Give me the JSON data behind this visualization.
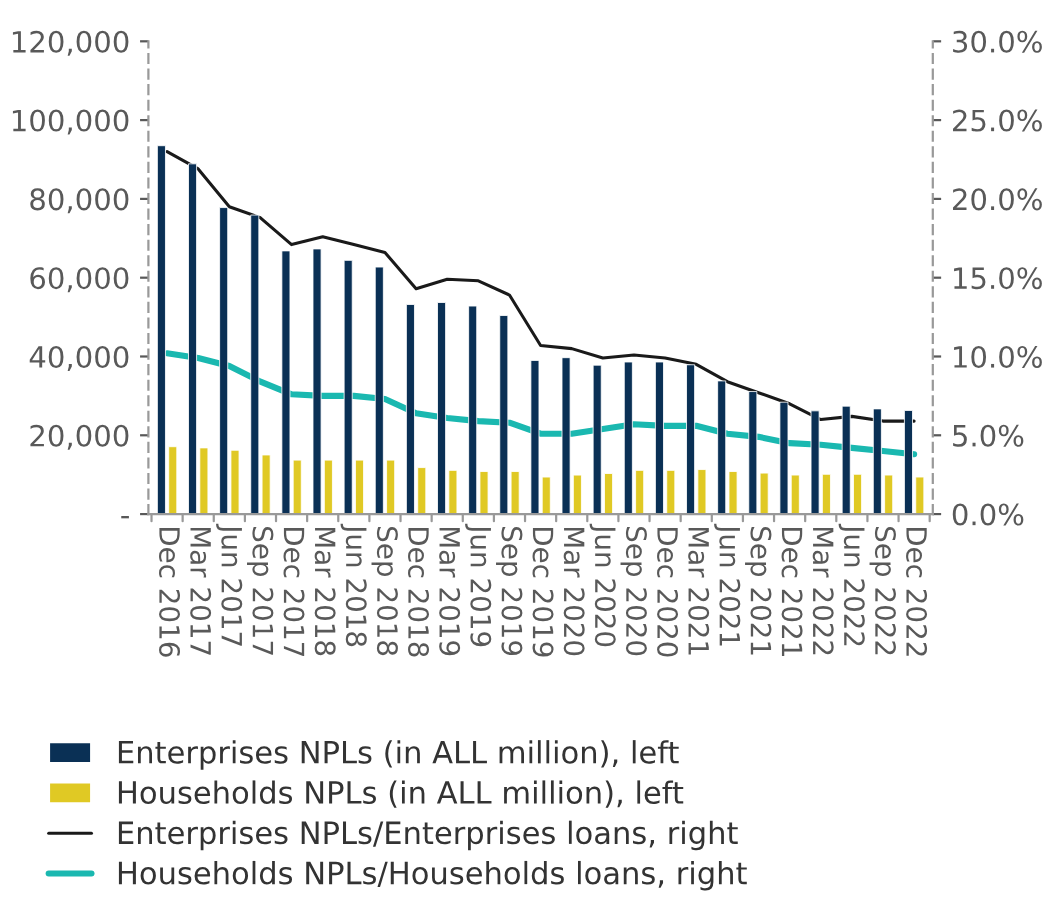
{
  "chart_data": {
    "type": "bar",
    "categories": [
      "Dec 2016",
      "Mar 2017",
      "Jun 2017",
      "Sep 2017",
      "Dec 2017",
      "Mar 2018",
      "Jun 2018",
      "Sep 2018",
      "Dec 2018",
      "Mar 2019",
      "Jun 2019",
      "Sep 2019",
      "Dec 2019",
      "Mar 2020",
      "Jun 2020",
      "Sep 2020",
      "Dec 2020",
      "Mar 2021",
      "Jun 2021",
      "Sep 2021",
      "Dec 2021",
      "Mar 2022",
      "Jun 2022",
      "Sep 2022",
      "Dec 2022"
    ],
    "series": [
      {
        "name": "Enterprises NPLs (in ALL million), left",
        "color": "#0a3055",
        "values": [
          93500,
          88900,
          77800,
          75900,
          66800,
          67300,
          64400,
          62700,
          53200,
          53700,
          52800,
          50400,
          39000,
          39700,
          37800,
          38600,
          38600,
          37900,
          33800,
          31100,
          28400,
          26200,
          27400,
          26700,
          26300
        ]
      },
      {
        "name": "Households NPLs (in ALL million), left",
        "color": "#e0c924",
        "values": [
          17100,
          16800,
          16200,
          15000,
          13700,
          13700,
          13700,
          13700,
          11800,
          11100,
          10800,
          10800,
          9400,
          9900,
          10300,
          11100,
          11100,
          11300,
          10800,
          10400,
          9900,
          10100,
          10100,
          9900,
          9400
        ]
      },
      {
        "name": "Enterprises NPLs/Enterprises loans, right",
        "type": "line",
        "axis": "y2",
        "color": "#1a1a1a",
        "values": [
          23.0,
          21.9,
          19.5,
          18.8,
          17.1,
          17.6,
          17.1,
          16.6,
          14.3,
          14.9,
          14.8,
          13.9,
          10.7,
          10.5,
          9.9,
          10.1,
          9.9,
          9.5,
          8.4,
          7.7,
          7.0,
          6.0,
          6.2,
          5.9,
          5.9
        ]
      },
      {
        "name": "Households NPLs/Households loans, right",
        "type": "line",
        "axis": "y2",
        "color": "#1ab8b0",
        "values": [
          10.2,
          9.9,
          9.4,
          8.4,
          7.6,
          7.5,
          7.5,
          7.3,
          6.4,
          6.1,
          5.9,
          5.8,
          5.1,
          5.1,
          5.4,
          5.7,
          5.6,
          5.6,
          5.1,
          4.9,
          4.5,
          4.4,
          4.2,
          4.0,
          3.8
        ]
      }
    ],
    "ylim": [
      0,
      120000
    ],
    "yticks": [
      {
        "value": 0,
        "label": "-"
      },
      {
        "value": 20000,
        "label": "20,000"
      },
      {
        "value": 40000,
        "label": "40,000"
      },
      {
        "value": 60000,
        "label": "60,000"
      },
      {
        "value": 80000,
        "label": "80,000"
      },
      {
        "value": 100000,
        "label": "100,000"
      },
      {
        "value": 120000,
        "label": "120,000"
      }
    ],
    "y2lim": [
      0,
      30
    ],
    "y2ticks": [
      {
        "value": 0,
        "label": "0.0%"
      },
      {
        "value": 5,
        "label": "5.0%"
      },
      {
        "value": 10,
        "label": "10.0%"
      },
      {
        "value": 15,
        "label": "15.0%"
      },
      {
        "value": 20,
        "label": "20.0%"
      },
      {
        "value": 25,
        "label": "25.0%"
      },
      {
        "value": 30,
        "label": "30.0%"
      }
    ],
    "grid": false,
    "legend": "bottom"
  }
}
